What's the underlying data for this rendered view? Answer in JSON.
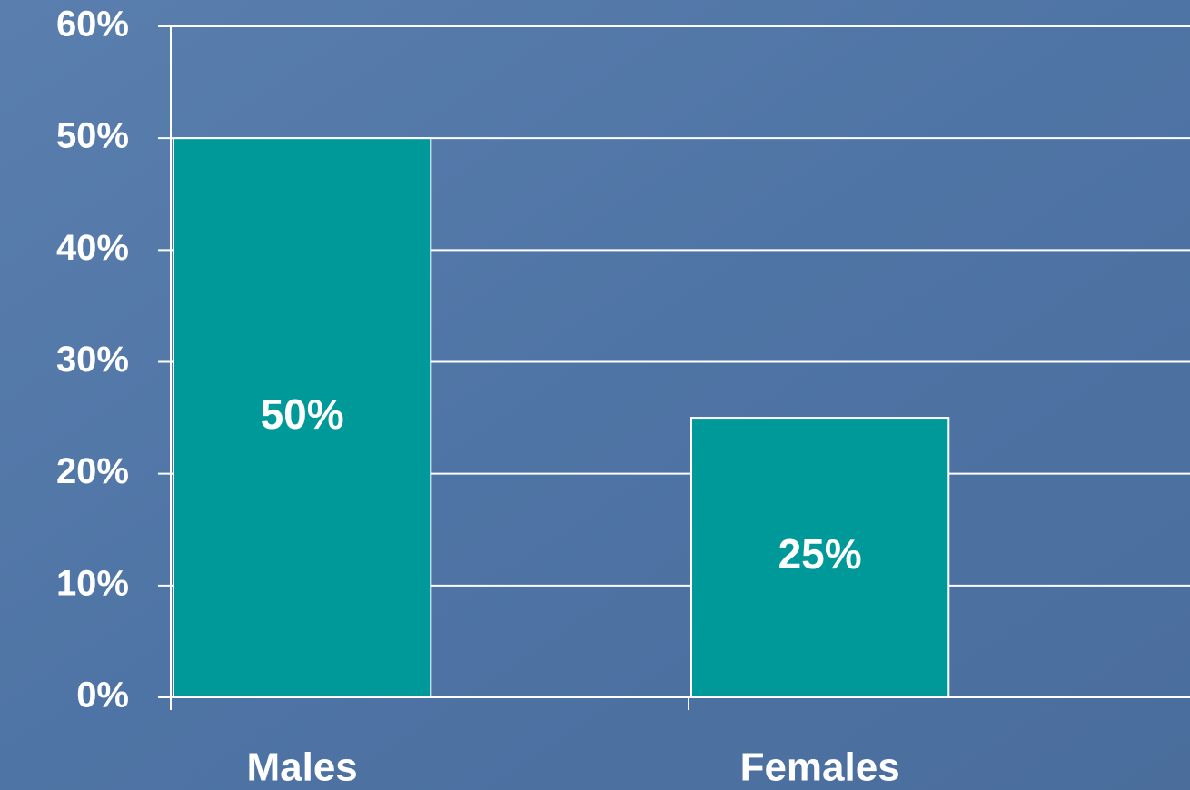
{
  "chart_data": {
    "type": "bar",
    "categories": [
      "Males",
      "Females"
    ],
    "values": [
      50,
      25
    ],
    "value_labels": [
      "50%",
      "25%"
    ],
    "color": "#009999",
    "ylim": [
      0,
      60
    ],
    "yticks": [
      {
        "value": 0,
        "label": "0%"
      },
      {
        "value": 10,
        "label": "10%"
      },
      {
        "value": 20,
        "label": "20%"
      },
      {
        "value": 30,
        "label": "30%"
      },
      {
        "value": 40,
        "label": "40%"
      },
      {
        "value": 50,
        "label": "50%"
      },
      {
        "value": 60,
        "label": "60%"
      }
    ],
    "grid": true
  }
}
